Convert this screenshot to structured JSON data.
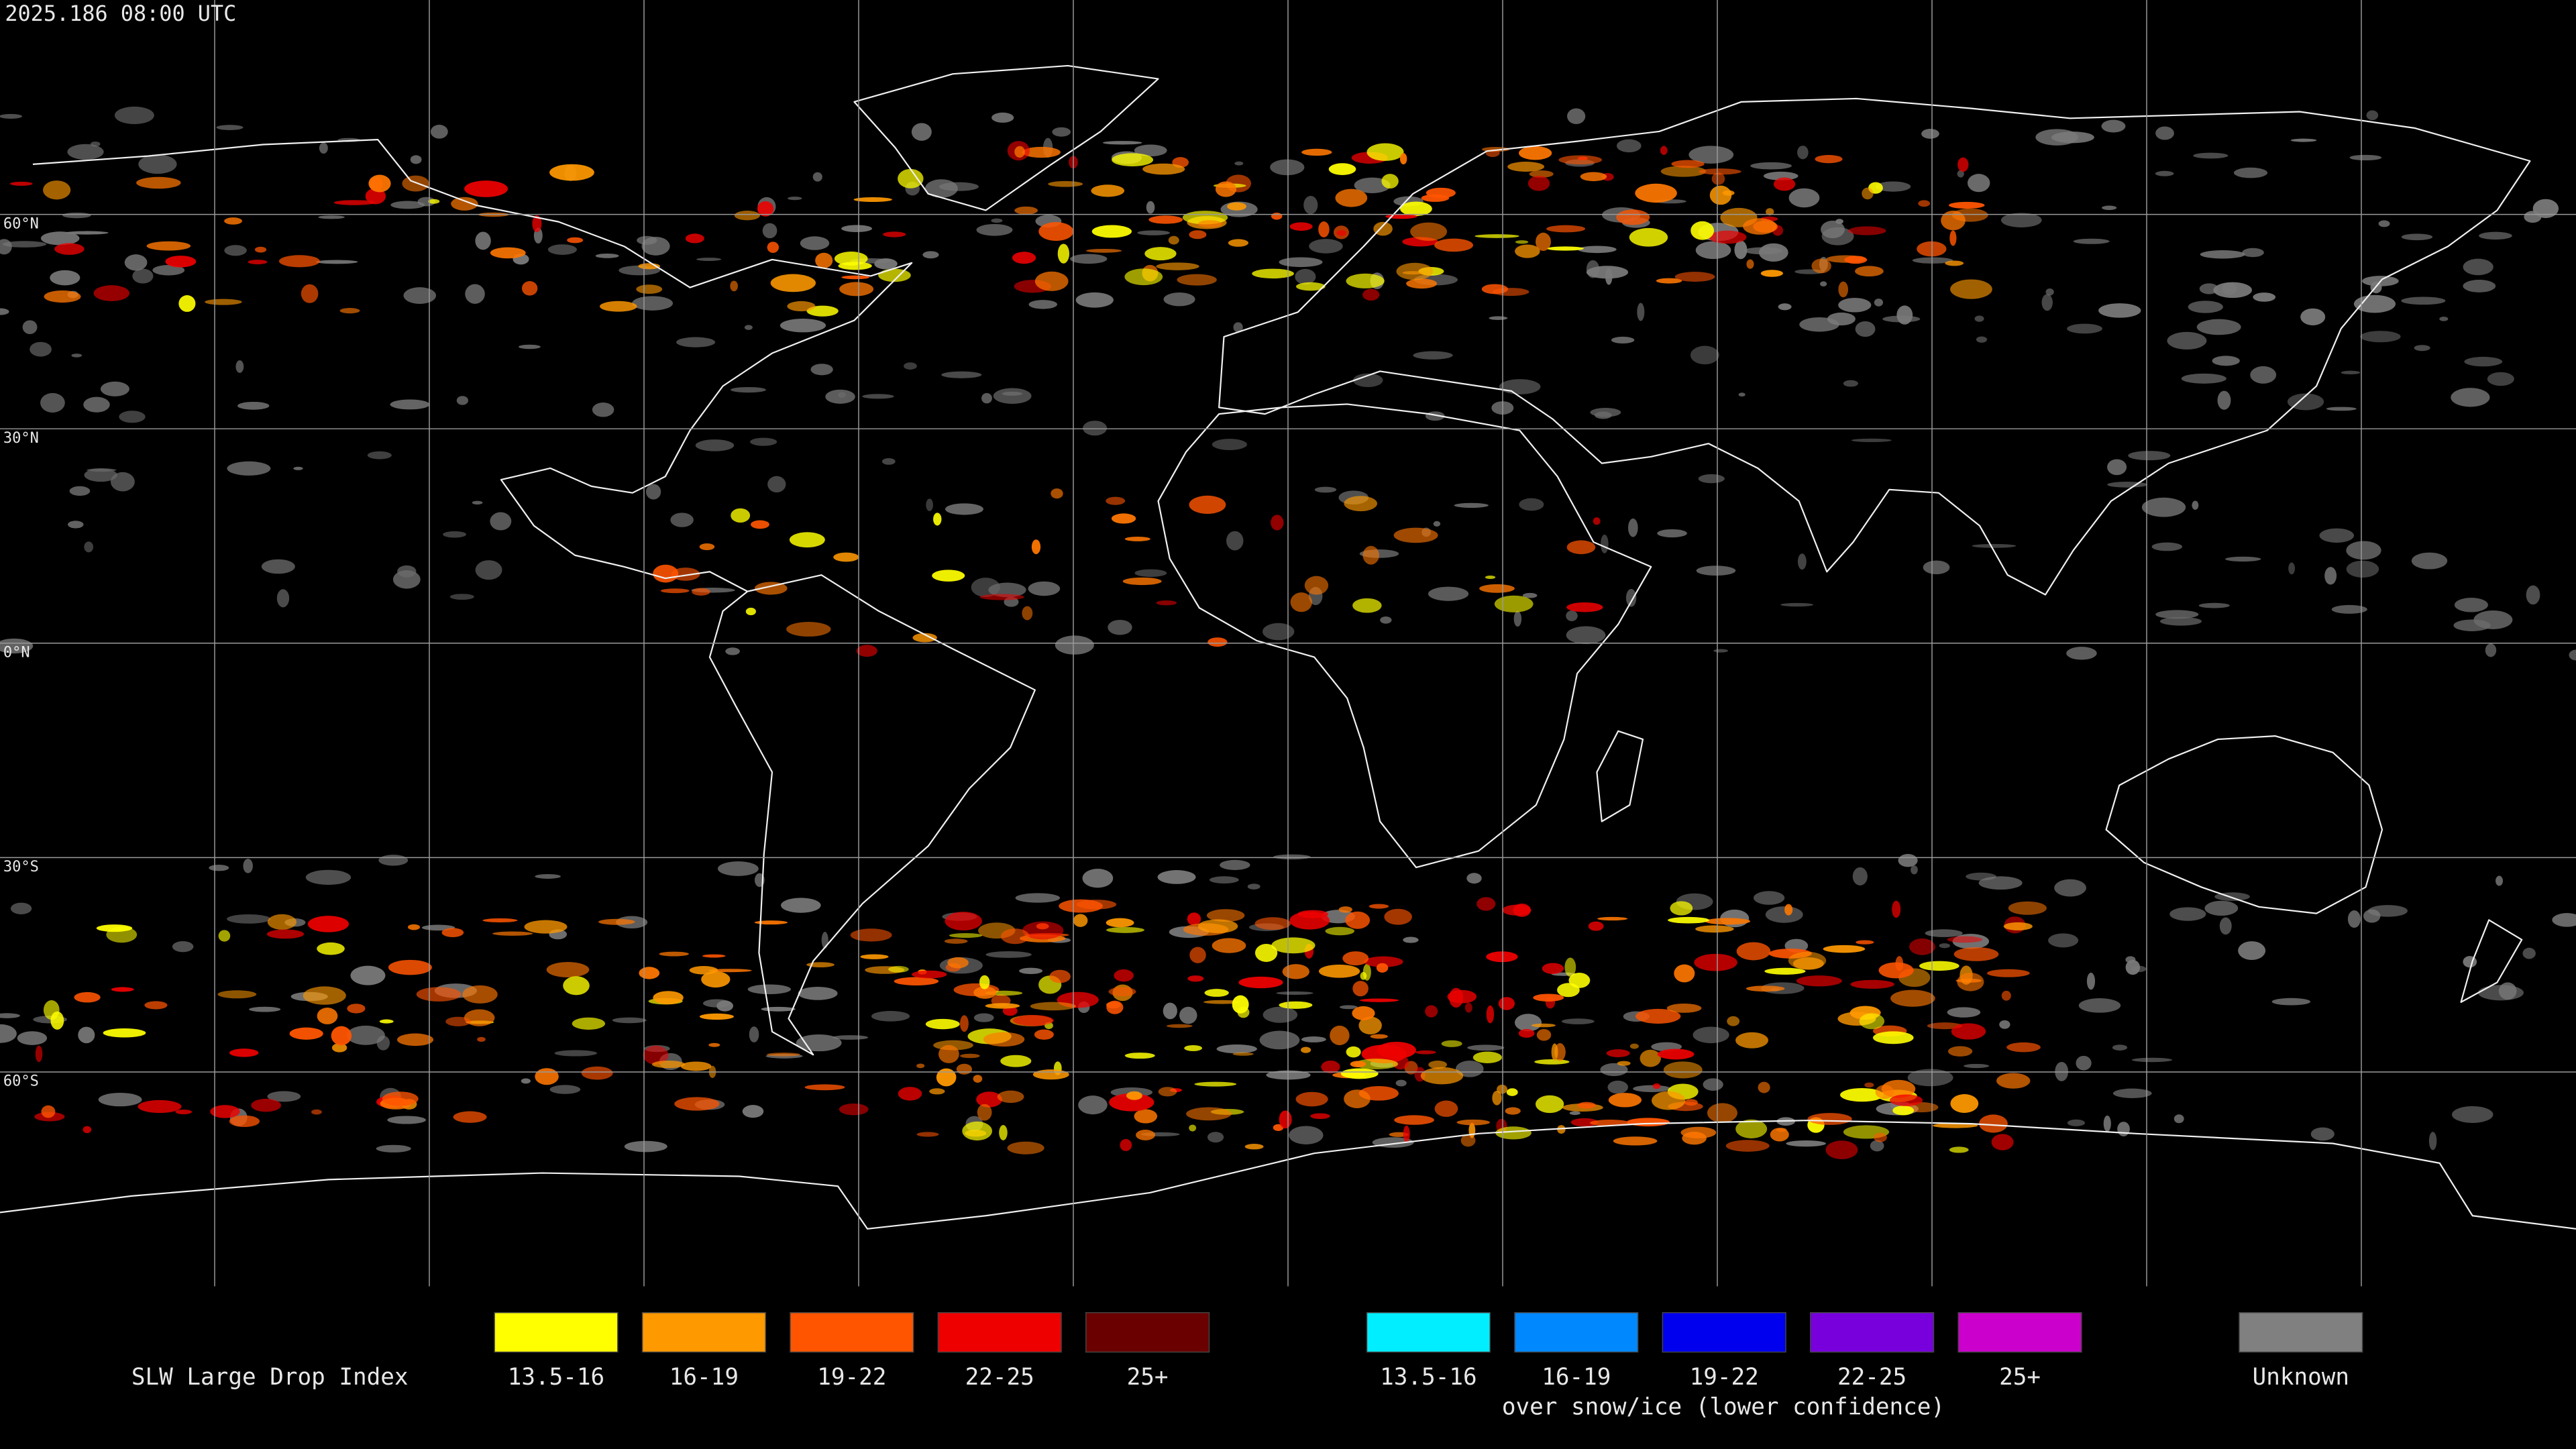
{
  "timestamp": "2025.186 08:00 UTC",
  "latitude_labels": [
    "60°N",
    "30°N",
    "0°N",
    "30°S",
    "60°S"
  ],
  "legend": {
    "title": "SLW Large Drop Index",
    "items": [
      {
        "label": "13.5-16",
        "color": "#ffff00"
      },
      {
        "label": "16-19",
        "color": "#ff9900"
      },
      {
        "label": "19-22",
        "color": "#ff5500"
      },
      {
        "label": "22-25",
        "color": "#ee0000"
      },
      {
        "label": "25+",
        "color": "#6a0000"
      }
    ],
    "snow_ice_items": [
      {
        "label": "13.5-16",
        "color": "#00eeff"
      },
      {
        "label": "16-19",
        "color": "#0088ff"
      },
      {
        "label": "19-22",
        "color": "#0000ee"
      },
      {
        "label": "22-25",
        "color": "#7700dd"
      },
      {
        "label": "25+",
        "color": "#cc00cc"
      }
    ],
    "snow_ice_note": "over snow/ice (lower confidence)",
    "unknown": {
      "label": "Unknown",
      "color": "#808080"
    }
  }
}
